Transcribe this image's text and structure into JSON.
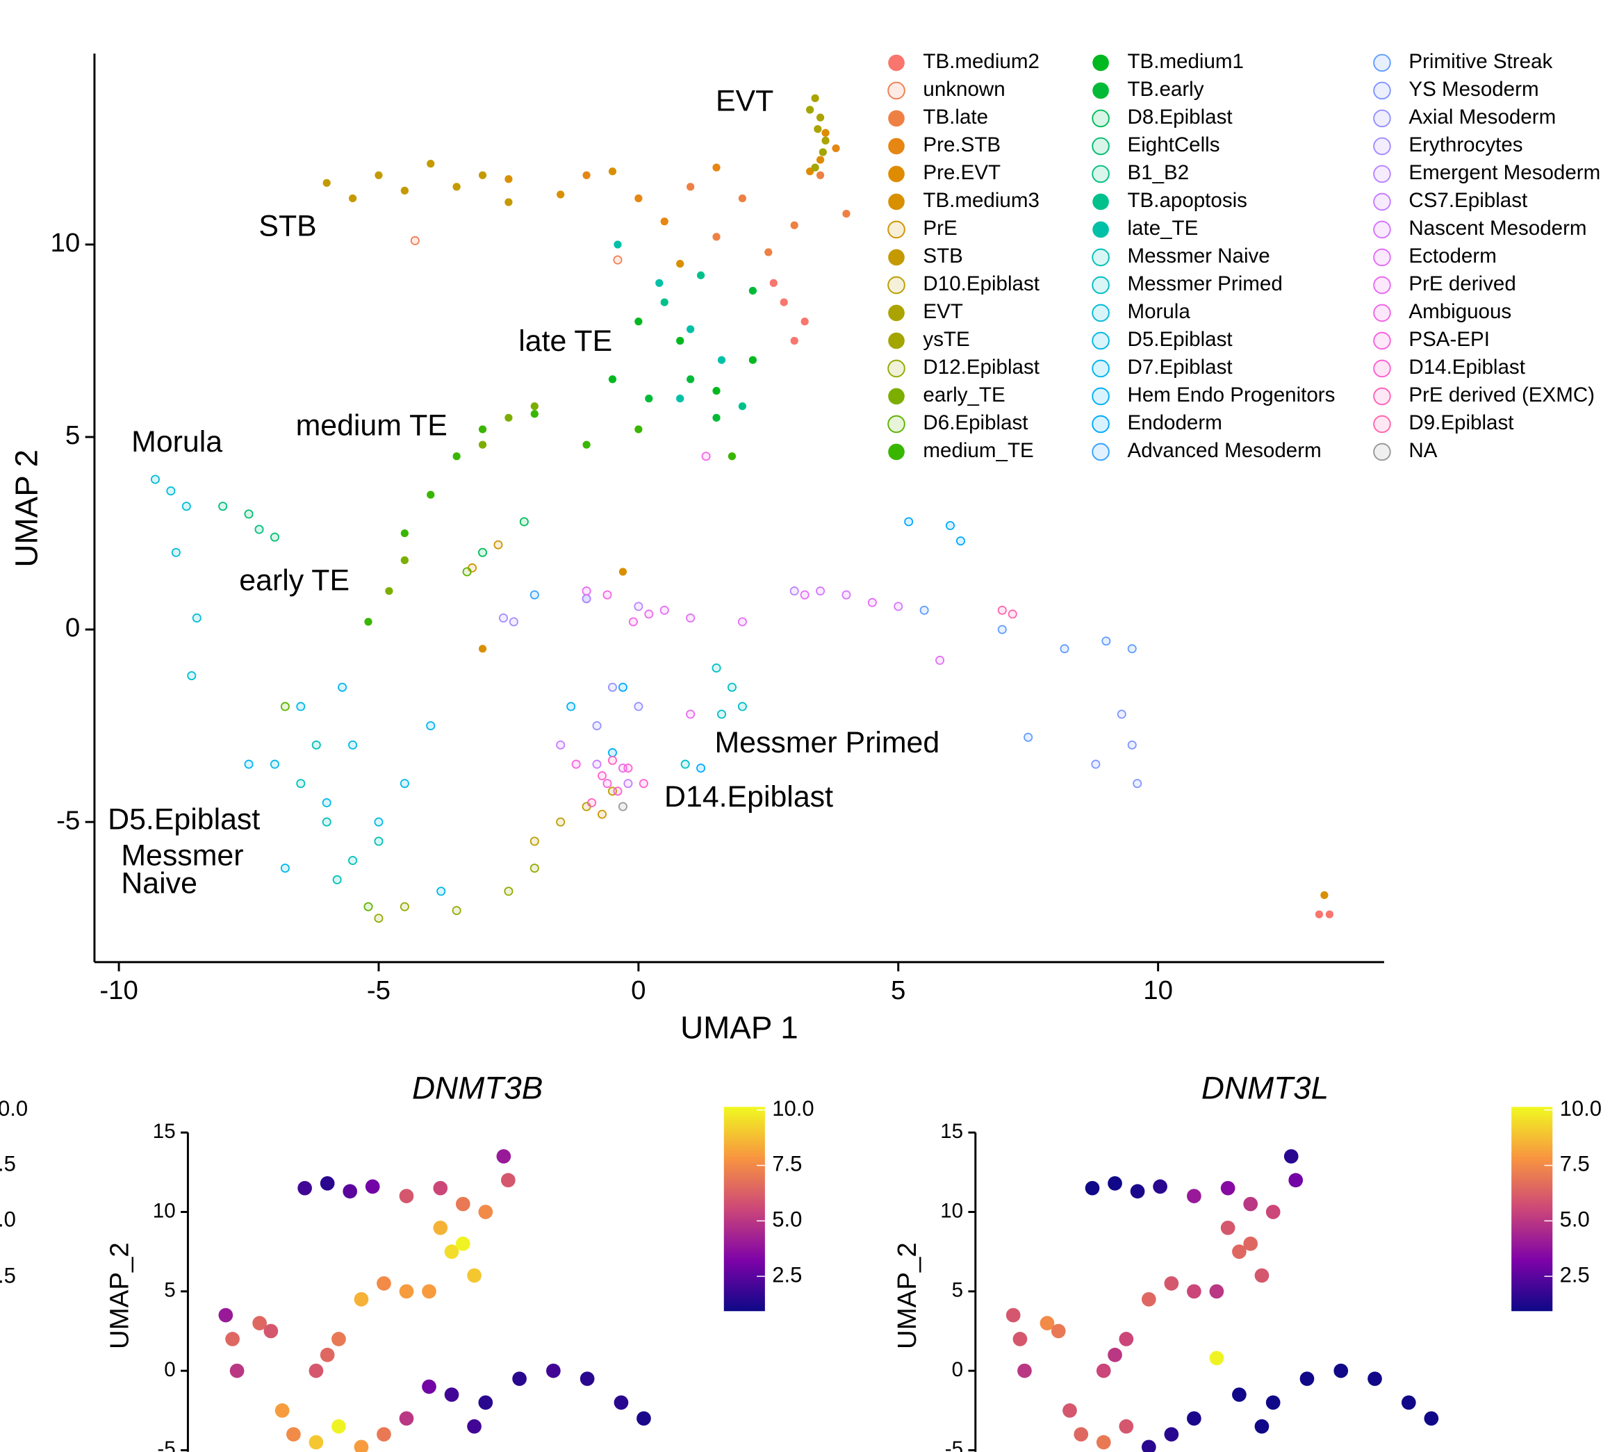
{
  "chart_data": [
    {
      "type": "scatter",
      "xlabel": "UMAP 1",
      "ylabel": "UMAP 2",
      "xlim": [
        -10.47,
        14.35
      ],
      "ylim": [
        -8.64,
        14.96
      ],
      "xticks": [
        -10,
        -5,
        0,
        5,
        10
      ],
      "yticks": [
        -5,
        0,
        5,
        10
      ],
      "legend": "top-right",
      "legend_columns": 3,
      "annotations": [
        "EVT",
        "STB",
        "late TE",
        "medium TE",
        "Morula",
        "early TE",
        "Messmer Primed",
        "D14.Epiblast",
        "D5.Epiblast",
        "Messmer",
        "Naive"
      ],
      "series": [
        {
          "name": "TB.medium2",
          "color": "#F8766D",
          "filled": true,
          "x": [
            2.8,
            3.0,
            2.6,
            3.2,
            13.1,
            13.3
          ],
          "y": [
            8.5,
            7.5,
            9,
            8,
            -7.4,
            -7.4
          ]
        },
        {
          "name": "unknown",
          "color": "#F27D52",
          "filled": false,
          "x": [
            -4.3,
            -0.4
          ],
          "y": [
            10.1,
            9.6
          ]
        },
        {
          "name": "TB.late",
          "color": "#EE8043",
          "filled": true,
          "x": [
            1,
            2,
            3,
            3.5,
            4,
            2.5,
            1.5
          ],
          "y": [
            11.5,
            11.2,
            10.5,
            11.8,
            10.8,
            9.8,
            10.2
          ]
        },
        {
          "name": "Pre.STB",
          "color": "#E68613",
          "filled": true,
          "x": [
            0,
            0.5,
            1.5,
            -1,
            3.8
          ],
          "y": [
            11.2,
            10.6,
            12,
            11.8,
            12.5
          ]
        },
        {
          "name": "Pre.EVT",
          "color": "#DF8B00",
          "filled": true,
          "x": [
            3.5,
            3.6,
            3.3
          ],
          "y": [
            12.2,
            12.9,
            11.9
          ]
        },
        {
          "name": "TB.medium3",
          "color": "#D89000",
          "filled": true,
          "x": [
            -1.5,
            -0.5,
            0.8,
            -2.5,
            -3,
            -0.3,
            13.2
          ],
          "y": [
            11.3,
            11.9,
            9.5,
            11.7,
            -0.5,
            1.5,
            -6.9
          ]
        },
        {
          "name": "PrE",
          "color": "#CF9400",
          "filled": false,
          "x": [
            -3.2,
            -2.7,
            -0.7
          ],
          "y": [
            1.6,
            2.2,
            -4.8
          ]
        },
        {
          "name": "STB",
          "color": "#C49A00",
          "filled": true,
          "x": [
            -6,
            -5.5,
            -5,
            -4.5,
            -4,
            -3.5,
            -3,
            -2.5
          ],
          "y": [
            11.6,
            11.2,
            11.8,
            11.4,
            12.1,
            11.5,
            11.8,
            11.1
          ]
        },
        {
          "name": "D10.Epiblast",
          "color": "#BB9D00",
          "filled": false,
          "x": [
            -2,
            -1.5,
            -1,
            -0.5
          ],
          "y": [
            -5.5,
            -5,
            -4.6,
            -4.2
          ]
        },
        {
          "name": "EVT",
          "color": "#ABA300",
          "filled": true,
          "x": [
            3.4,
            3.5,
            3.6,
            3.45
          ],
          "y": [
            13.8,
            13.3,
            12.7,
            13
          ]
        },
        {
          "name": "ysTE",
          "color": "#A3A500",
          "filled": true,
          "x": [
            3.55,
            3.3,
            3.4
          ],
          "y": [
            12.4,
            13.5,
            12
          ]
        },
        {
          "name": "D12.Epiblast",
          "color": "#93AA00",
          "filled": false,
          "x": [
            -4.5,
            -3.5,
            -2.5,
            -2,
            -5
          ],
          "y": [
            -7.2,
            -7.3,
            -6.8,
            -6.2,
            -7.5
          ]
        },
        {
          "name": "early_TE",
          "color": "#7CAE00",
          "filled": true,
          "x": [
            -4.8,
            -4.5,
            -2.5,
            -2,
            -3
          ],
          "y": [
            1,
            1.8,
            5.5,
            5.8,
            4.8
          ]
        },
        {
          "name": "D6.Epiblast",
          "color": "#5EB300",
          "filled": false,
          "x": [
            -6.8,
            -5.2,
            -3.3
          ],
          "y": [
            -2,
            -7.2,
            1.5
          ]
        },
        {
          "name": "medium_TE",
          "color": "#39B600",
          "filled": true,
          "x": [
            -3.5,
            -3,
            -2,
            -1,
            0,
            -4,
            -4.5,
            -5.2,
            1.8
          ],
          "y": [
            4.5,
            5.2,
            5.6,
            4.8,
            5.2,
            3.5,
            2.5,
            0.2,
            4.5
          ]
        },
        {
          "name": "TB.medium1",
          "color": "#00B81F",
          "filled": true,
          "x": [
            0,
            0.8,
            1.5,
            2.2,
            -0.5
          ],
          "y": [
            8,
            7.5,
            6.2,
            7,
            6.5
          ]
        },
        {
          "name": "TB.early",
          "color": "#00BA38",
          "filled": true,
          "x": [
            1,
            1.5,
            2.2,
            0.2
          ],
          "y": [
            6.5,
            5.5,
            8.8,
            6
          ]
        },
        {
          "name": "D8.Epiblast",
          "color": "#00BC59",
          "filled": false,
          "x": [
            -3,
            -2.2
          ],
          "y": [
            2,
            2.8
          ]
        },
        {
          "name": "EightCells",
          "color": "#00BE70",
          "filled": false,
          "x": [
            -7.5,
            -7
          ],
          "y": [
            3,
            2.4
          ]
        },
        {
          "name": "B1_B2",
          "color": "#00BF7D",
          "filled": false,
          "x": [
            -8,
            -7.3
          ],
          "y": [
            3.2,
            2.6
          ]
        },
        {
          "name": "TB.apoptosis",
          "color": "#00C08B",
          "filled": true,
          "x": [
            0.5,
            1.2,
            2
          ],
          "y": [
            8.5,
            9.2,
            5.8
          ]
        },
        {
          "name": "late_TE",
          "color": "#00C1A7",
          "filled": true,
          "x": [
            -0.4,
            0.4,
            1,
            1.6,
            0.8
          ],
          "y": [
            10,
            9,
            7.8,
            7,
            6
          ]
        },
        {
          "name": "Messmer Naive",
          "color": "#00C0B8",
          "filled": false,
          "x": [
            -6.5,
            -6,
            -5.5,
            -5,
            -6.2,
            -5.8
          ],
          "y": [
            -4,
            -5,
            -6,
            -5.5,
            -3,
            -6.5
          ]
        },
        {
          "name": "Messmer Primed",
          "color": "#00BFC4",
          "filled": false,
          "x": [
            1.5,
            1.8,
            2,
            1.6,
            0.9
          ],
          "y": [
            -1,
            -1.5,
            -2,
            -2.2,
            -3.5
          ]
        },
        {
          "name": "Morula",
          "color": "#00BCD8",
          "filled": false,
          "x": [
            -9.3,
            -9,
            -8.7,
            -8.9,
            -8.5,
            -8.6
          ],
          "y": [
            3.9,
            3.6,
            3.2,
            2,
            0.3,
            -1.2
          ]
        },
        {
          "name": "D5.Epiblast",
          "color": "#00B8E7",
          "filled": false,
          "x": [
            -7,
            -6.5,
            -6,
            -5.5,
            -5,
            -4.5,
            -6.8,
            -3.8
          ],
          "y": [
            -3.5,
            -2,
            -4.5,
            -3,
            -5,
            -4,
            -6.2,
            -6.8
          ]
        },
        {
          "name": "D7.Epiblast",
          "color": "#00B4EF",
          "filled": false,
          "x": [
            -7.5,
            -5.7,
            -4
          ],
          "y": [
            -3.5,
            -1.5,
            -2.5
          ]
        },
        {
          "name": "Hem Endo Progenitors",
          "color": "#00B0F6",
          "filled": false,
          "x": [
            -0.5,
            -1.3
          ],
          "y": [
            -3.2,
            -2
          ]
        },
        {
          "name": "Endoderm",
          "color": "#00A9FF",
          "filled": false,
          "x": [
            5.2,
            6,
            6.2,
            1.2,
            -0.3
          ],
          "y": [
            2.8,
            2.7,
            2.3,
            -3.6,
            -1.5
          ]
        },
        {
          "name": "Advanced Mesoderm",
          "color": "#35A2FF",
          "filled": false,
          "x": [
            -2,
            -1
          ],
          "y": [
            0.9,
            0.8
          ]
        },
        {
          "name": "Primitive Streak",
          "color": "#619CFF",
          "filled": false,
          "x": [
            5.5,
            7,
            8.2,
            9,
            9.5,
            7.5
          ],
          "y": [
            0.5,
            0,
            -0.5,
            -0.3,
            -0.5,
            -2.8
          ]
        },
        {
          "name": "YS Mesoderm",
          "color": "#7F96FF",
          "filled": false,
          "x": [
            9.3,
            9.5,
            9.6,
            8.8
          ],
          "y": [
            -2.2,
            -3,
            -4,
            -3.5
          ]
        },
        {
          "name": "Axial Mesoderm",
          "color": "#9590FF",
          "filled": false,
          "x": [
            -0.5,
            0,
            -0.8
          ],
          "y": [
            -1.5,
            -2,
            -2.5
          ]
        },
        {
          "name": "Erythrocytes",
          "color": "#A58AFF",
          "filled": false,
          "x": [
            -2.6,
            -2.4
          ],
          "y": [
            0.3,
            0.2
          ]
        },
        {
          "name": "Emergent Mesoderm",
          "color": "#B983FF",
          "filled": false,
          "x": [
            -1,
            0,
            3
          ],
          "y": [
            0.8,
            0.6,
            1
          ]
        },
        {
          "name": "CS7.Epiblast",
          "color": "#C77CFF",
          "filled": false,
          "x": [
            -1.5,
            -0.8,
            -0.2
          ],
          "y": [
            -3,
            -3.5,
            -4
          ]
        },
        {
          "name": "Nascent Mesoderm",
          "color": "#D575FE",
          "filled": false,
          "x": [
            3.5,
            4,
            5
          ],
          "y": [
            1,
            0.9,
            0.6
          ]
        },
        {
          "name": "Ectoderm",
          "color": "#E36EF6",
          "filled": false,
          "x": [
            0.5,
            1,
            2,
            3.2,
            4.5,
            5.8
          ],
          "y": [
            0.5,
            0.3,
            0.2,
            0.9,
            0.7,
            -0.8
          ]
        },
        {
          "name": "PrE derived",
          "color": "#EA6AF1",
          "filled": false,
          "x": [
            -1,
            0.2,
            1,
            -0.3
          ],
          "y": [
            1,
            0.4,
            -2.2,
            -3.6
          ]
        },
        {
          "name": "Ambiguous",
          "color": "#F265E7",
          "filled": false,
          "x": [
            -0.6,
            -0.1,
            1.3
          ],
          "y": [
            0.9,
            0.2,
            4.5
          ]
        },
        {
          "name": "PSA-EPI",
          "color": "#F763E0",
          "filled": false,
          "x": [
            -1.2,
            -0.6
          ],
          "y": [
            -3.5,
            -4
          ]
        },
        {
          "name": "D14.Epiblast",
          "color": "#FD61D1",
          "filled": false,
          "x": [
            -0.7,
            -0.4,
            -0.2,
            0.1
          ],
          "y": [
            -3.8,
            -4.2,
            -3.6,
            -4
          ]
        },
        {
          "name": "PrE derived (EXMC)",
          "color": "#FF62BC",
          "filled": false,
          "x": [
            -0.9,
            -0.5
          ],
          "y": [
            -4.5,
            -3.4
          ]
        },
        {
          "name": "D9.Epiblast",
          "color": "#FF65AE",
          "filled": false,
          "x": [
            7,
            7.2
          ],
          "y": [
            0.5,
            0.4
          ]
        },
        {
          "name": "NA",
          "color": "#999999",
          "filled": false,
          "x": [
            -0.3
          ],
          "y": [
            -4.6
          ]
        }
      ]
    },
    {
      "type": "feature",
      "title": "DNMT3B",
      "ylabel": "UMAP_2",
      "xlim": [
        -10.9,
        13
      ],
      "ylim": [
        -5.1,
        15
      ],
      "yticks": [
        -5,
        0,
        5,
        10,
        15
      ],
      "colormap": [
        "#0d0887",
        "#7e03a8",
        "#cc4778",
        "#f89540",
        "#f0f921"
      ],
      "clim": [
        0.93,
        10.14
      ],
      "cticks": [
        {
          "value": 10,
          "label": "10.0"
        },
        7.5,
        {
          "value": 5,
          "label": "5.0"
        },
        2.5
      ],
      "x": [
        -5.5,
        -4.5,
        -3.5,
        -2.5,
        -1,
        0.5,
        1.5,
        2.5,
        3.3,
        3.5,
        0.5,
        1,
        1.5,
        2,
        -1,
        -2,
        -3,
        0,
        -4,
        -4.5,
        -5,
        -9,
        -8.7,
        -8.5,
        -7.5,
        -7,
        1,
        2.5,
        4,
        5.5,
        7,
        8.5,
        9.5,
        2,
        0,
        -1,
        -6.5,
        -6,
        -5,
        -4,
        -3,
        -2
      ],
      "y": [
        11.5,
        11.8,
        11.3,
        11.6,
        11,
        11.5,
        10.5,
        10,
        13.5,
        12,
        9,
        7.5,
        8,
        6,
        5,
        5.5,
        4.5,
        5,
        2,
        1,
        0,
        3.5,
        2,
        0,
        3,
        2.5,
        -1.5,
        -2,
        -0.5,
        0,
        -0.5,
        -2,
        -3,
        -3.5,
        -1,
        -3,
        -2.5,
        -4,
        -4.5,
        -3.5,
        -4.8,
        -4
      ],
      "values": [
        2,
        1.5,
        2.5,
        3,
        6,
        5.5,
        7,
        7.5,
        4,
        6,
        8.5,
        9.5,
        10,
        9,
        8,
        7.5,
        8.5,
        8,
        7,
        6.5,
        6,
        4,
        6.5,
        5,
        6.5,
        6,
        2,
        1.5,
        1.5,
        2,
        1.5,
        1.5,
        1.2,
        2,
        3,
        5,
        8,
        7.5,
        9,
        10,
        8,
        7
      ]
    },
    {
      "type": "feature",
      "title": "DNMT3L",
      "ylabel": "UMAP_2",
      "xlim": [
        -10.9,
        13
      ],
      "ylim": [
        -5.1,
        15
      ],
      "yticks": [
        -5,
        0,
        5,
        10,
        15
      ],
      "colormap": [
        "#0d0887",
        "#7e03a8",
        "#cc4778",
        "#f89540",
        "#f0f921"
      ],
      "clim": [
        0.93,
        10.14
      ],
      "cticks": [
        {
          "value": 10,
          "label": "10.0"
        },
        7.5,
        {
          "value": 5,
          "label": "5.0"
        },
        2.5
      ],
      "x": [
        -5.5,
        -4.5,
        -3.5,
        -2.5,
        -1,
        0.5,
        1.5,
        2.5,
        3.3,
        3.5,
        0.5,
        1,
        1.5,
        2,
        -1,
        -2,
        -3,
        0,
        -4,
        -4.5,
        -5,
        -9,
        -8.7,
        -8.5,
        -7.5,
        -7,
        1,
        2.5,
        4,
        5.5,
        7,
        8.5,
        9.5,
        2,
        0,
        -1,
        -6.5,
        -6,
        -5,
        -4,
        -3,
        -2
      ],
      "y": [
        11.5,
        11.8,
        11.3,
        11.6,
        11,
        11.5,
        10.5,
        10,
        13.5,
        12,
        9,
        7.5,
        8,
        6,
        5,
        5.5,
        4.5,
        5,
        2,
        1,
        0,
        3.5,
        2,
        0,
        3,
        2.5,
        -1.5,
        -2,
        -0.5,
        0,
        -0.5,
        -2,
        -3,
        -3.5,
        0.8,
        -3,
        -2.5,
        -4,
        -4.5,
        -3.5,
        -4.8,
        -4
      ],
      "values": [
        1,
        1,
        1.2,
        1.5,
        4,
        3.5,
        5,
        5.5,
        1.5,
        3,
        6,
        6.5,
        6.5,
        6,
        5.5,
        6,
        6.5,
        5,
        5.5,
        5,
        5.5,
        6,
        6,
        5,
        7.5,
        7,
        1,
        1,
        1,
        1,
        1,
        1,
        1,
        1,
        10,
        1.2,
        6,
        6.5,
        7,
        6,
        1.5,
        1.5
      ]
    }
  ],
  "partial_colorbar_labels": [
    "0.0",
    ".5",
    ".0",
    ".5"
  ]
}
